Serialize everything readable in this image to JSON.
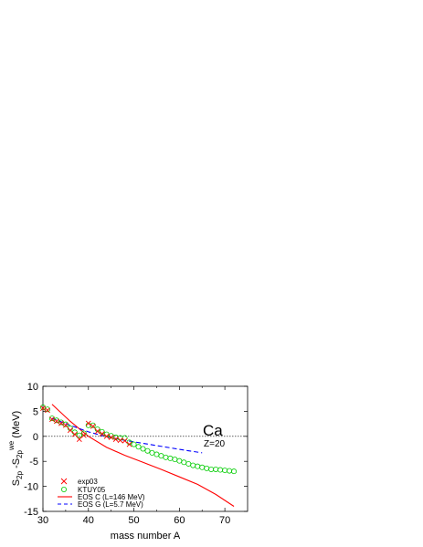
{
  "chart_data": {
    "type": "scatter",
    "title": "",
    "xlabel": "mass number A",
    "ylabel_main": "S",
    "ylabel_sub1": "2p",
    "ylabel_mid": " -S",
    "ylabel_sub2": "2p",
    "ylabel_sup": "we",
    "ylabel_unit": " (MeV)",
    "xlim": [
      30,
      75
    ],
    "ylim": [
      -15,
      10
    ],
    "x_ticks": [
      30,
      40,
      50,
      60,
      70
    ],
    "y_ticks": [
      -15,
      -10,
      -5,
      0,
      5,
      10
    ],
    "x_tick_labels": [
      "30",
      "40",
      "50",
      "60",
      "70"
    ],
    "y_tick_labels": [
      "-15",
      "-10",
      "-5",
      "0",
      "5",
      "10"
    ],
    "zero_line": true,
    "grid": false,
    "legend_position": "bottom-left",
    "annotations": {
      "element": "Ca",
      "proton_number": "Z=20"
    },
    "series": [
      {
        "name": "exp03",
        "kind": "marker-x",
        "color": "#ff0000",
        "x": [
          30,
          31,
          32,
          33,
          34,
          35,
          36,
          37,
          38,
          39,
          40,
          41,
          42,
          43,
          44,
          45,
          46,
          47,
          48,
          49
        ],
        "y": [
          5.6,
          5.2,
          3.4,
          3.0,
          2.6,
          2.2,
          1.2,
          0.4,
          -0.6,
          0.2,
          2.6,
          2.0,
          1.0,
          0.5,
          0.0,
          -0.2,
          -0.6,
          -0.8,
          -0.9,
          -1.6
        ]
      },
      {
        "name": "KTUY05",
        "kind": "marker-circle",
        "color": "#00cc00",
        "x": [
          30,
          31,
          32,
          33,
          34,
          35,
          36,
          37,
          38,
          39,
          40,
          41,
          42,
          43,
          44,
          45,
          46,
          47,
          48,
          49,
          50,
          51,
          52,
          53,
          54,
          55,
          56,
          57,
          58,
          59,
          60,
          61,
          62,
          63,
          64,
          65,
          66,
          67,
          68,
          69,
          70,
          71,
          72
        ],
        "y": [
          5.8,
          5.4,
          3.6,
          3.2,
          2.8,
          2.4,
          1.6,
          0.8,
          0.2,
          0.6,
          2.2,
          2.2,
          1.4,
          0.9,
          0.4,
          0.1,
          -0.2,
          -0.3,
          -0.3,
          -1.2,
          -1.6,
          -2.1,
          -2.5,
          -2.9,
          -3.3,
          -3.6,
          -3.9,
          -4.2,
          -4.4,
          -4.6,
          -4.9,
          -5.2,
          -5.5,
          -5.8,
          -6.0,
          -6.2,
          -6.4,
          -6.6,
          -6.6,
          -6.7,
          -6.8,
          -6.9,
          -7.0
        ]
      },
      {
        "name": "EOS C (L=146 MeV)",
        "kind": "line-solid",
        "color": "#ff0000",
        "x": [
          32,
          36,
          40,
          44,
          48,
          52,
          56,
          60,
          64,
          68,
          72
        ],
        "y": [
          6.4,
          3.0,
          0.0,
          -2.2,
          -3.8,
          -5.2,
          -6.6,
          -8.1,
          -9.6,
          -11.6,
          -14.0
        ]
      },
      {
        "name": "EOS G (L=5.7 MeV)",
        "kind": "line-dashed",
        "color": "#0000ff",
        "x": [
          32,
          36,
          40,
          44,
          48,
          52,
          56,
          60,
          65
        ],
        "y": [
          3.6,
          2.2,
          0.9,
          -0.1,
          -0.8,
          -1.4,
          -2.0,
          -2.6,
          -3.3
        ]
      }
    ]
  }
}
